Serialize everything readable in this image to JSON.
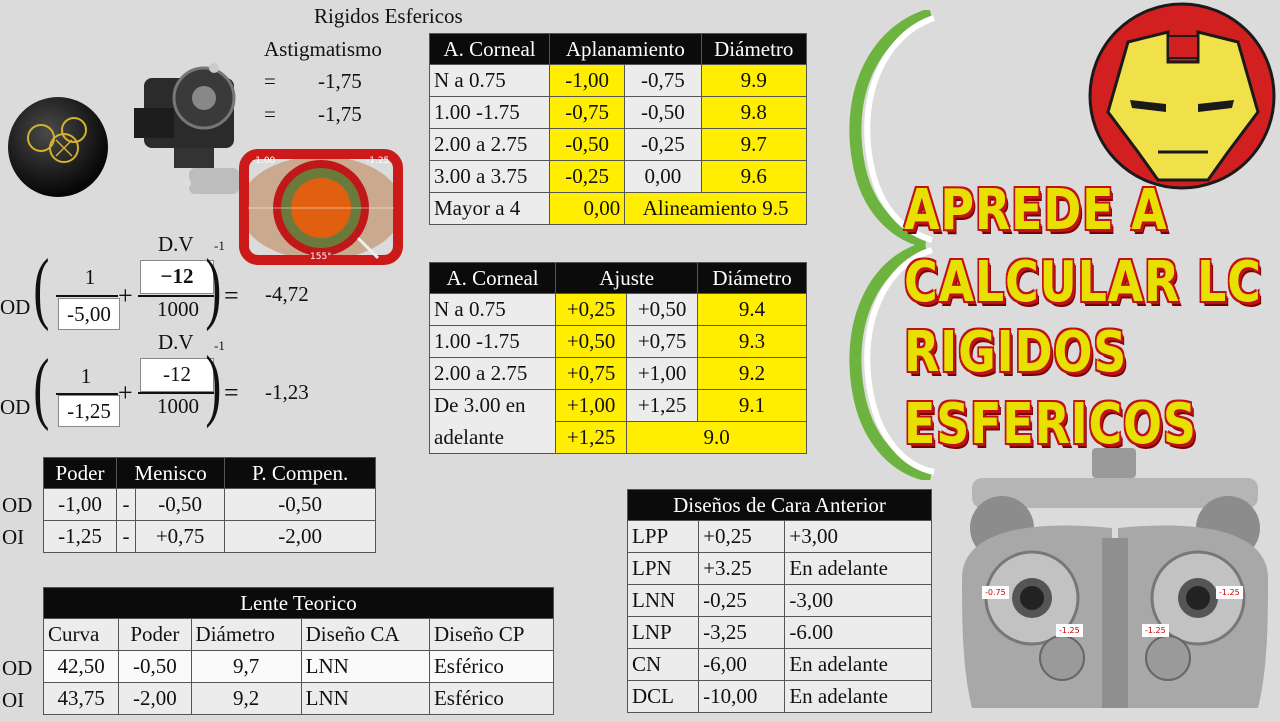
{
  "header": {
    "title": "Rigidos Esfericos",
    "astig_label": "Astigmatismo",
    "astig_rows": [
      {
        "sign": "=",
        "value": "-1,75"
      },
      {
        "sign": "=",
        "value": "-1,75"
      }
    ]
  },
  "keratometer_labels": {
    "left": "-1.00",
    "right": "-1.25",
    "bottom": "155°"
  },
  "formula": {
    "dv_label": "D.V",
    "exp": "-1",
    "rows": [
      {
        "eye": "OD",
        "num1": "1",
        "den1": "-5,00",
        "plus": "+",
        "num2": "−12",
        "den2": "1000",
        "eq": "=",
        "result": "-4,72"
      },
      {
        "eye": "OD",
        "num1": "1",
        "den1": "-1,25",
        "plus": "+",
        "num2": "-12",
        "den2": "1000",
        "eq": "=",
        "result": "-1,23"
      }
    ]
  },
  "table1": {
    "headers": [
      "A. Corneal",
      "Aplanamiento",
      "Diámetro"
    ],
    "rows": [
      [
        "N a 0.75",
        "-1,00",
        "-0,75",
        "9.9"
      ],
      [
        "1.00 -1.75",
        "-0,75",
        "-0,50",
        "9.8"
      ],
      [
        "2.00 a 2.75",
        "-0,50",
        "-0,25",
        "9.7"
      ],
      [
        "3.00 a 3.75",
        "-0,25",
        "0,00",
        "9.6"
      ]
    ],
    "last_row": [
      "Mayor a 4",
      "0,00",
      "Alineamiento 9.5"
    ]
  },
  "table2": {
    "headers": [
      "A. Corneal",
      "Ajuste",
      "Diámetro"
    ],
    "rows": [
      [
        "N a 0.75",
        "+0,25",
        "+0,50",
        "9.4"
      ],
      [
        "1.00 -1.75",
        "+0,50",
        "+0,75",
        "9.3"
      ],
      [
        "2.00 a 2.75",
        "+0,75",
        "+1,00",
        "9.2"
      ]
    ],
    "row4": [
      "De 3.00 en",
      "+1,00",
      "+1,25",
      "9.1"
    ],
    "row5": [
      "adelante",
      "+1,25",
      "9.0"
    ]
  },
  "table3": {
    "headers": [
      "Poder",
      "Menisco",
      "P. Compen."
    ],
    "rows": [
      {
        "eye": "OD",
        "poder": "-1,00",
        "sep": "-",
        "menisco": "-0,50",
        "comp": "-0,50"
      },
      {
        "eye": "OI",
        "poder": "-1,25",
        "sep": "-",
        "menisco": "+0,75",
        "comp": "-2,00"
      }
    ]
  },
  "table4": {
    "title": "Lente Teorico",
    "headers": [
      "Curva",
      "Poder",
      "Diámetro",
      "Diseño CA",
      "Diseño CP"
    ],
    "rows": [
      {
        "eye": "OD",
        "cells": [
          "42,50",
          "-0,50",
          "9,7",
          "LNN",
          "Esférico"
        ]
      },
      {
        "eye": "OI",
        "cells": [
          "43,75",
          "-2,00",
          "9,2",
          "LNN",
          "Esférico"
        ]
      }
    ]
  },
  "table5": {
    "title": "Diseños de Cara Anterior",
    "rows": [
      [
        "LPP",
        "+0,25",
        "+3,00"
      ],
      [
        "LPN",
        "+3.25",
        "En adelante"
      ],
      [
        "LNN",
        "-0,25",
        "-3,00"
      ],
      [
        "LNP",
        "-3,25",
        "-6.00"
      ],
      [
        "CN",
        "-6,00",
        "En adelante"
      ],
      [
        "DCL",
        "-10,00",
        "En adelante"
      ]
    ]
  },
  "promo": {
    "lines": [
      "APREDE A",
      "CALCULAR LC",
      "RIGIDOS",
      "ESFERICOS"
    ]
  },
  "phoropter_labels": {
    "l1": "-0.75",
    "l2": "-1.25",
    "r1": "-1.25",
    "r2": "-1.25"
  },
  "colors": {
    "yellow": "#ffee00",
    "header_bg": "#0b0b0b",
    "title_fill": "#e8e000",
    "title_outline": "#c0101a",
    "brace_green": "#6db33f"
  }
}
